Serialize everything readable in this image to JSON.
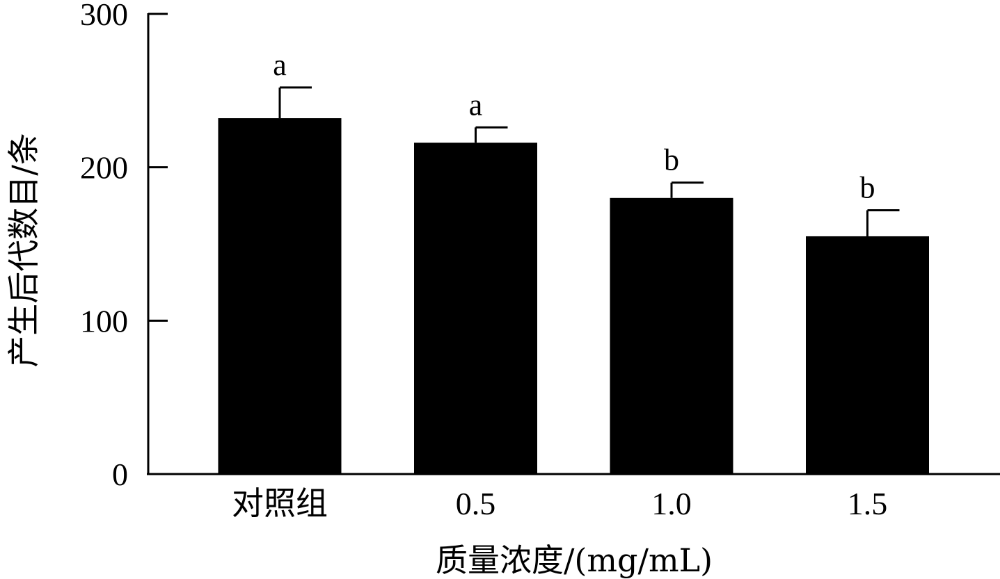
{
  "chart_data": {
    "type": "bar",
    "categories": [
      "对照组",
      "0.5",
      "1.0",
      "1.5"
    ],
    "values": [
      232,
      216,
      180,
      155
    ],
    "errors": [
      20,
      10,
      10,
      17
    ],
    "significance": [
      "a",
      "a",
      "b",
      "b"
    ],
    "xlabel": "质量浓度/(mg/mL)",
    "ylabel": "产生后代数目/条",
    "ylim": [
      0,
      300
    ],
    "yticks": [
      0,
      100,
      200,
      300
    ],
    "grid": false,
    "legend": "none",
    "bar_color": "#000000"
  }
}
